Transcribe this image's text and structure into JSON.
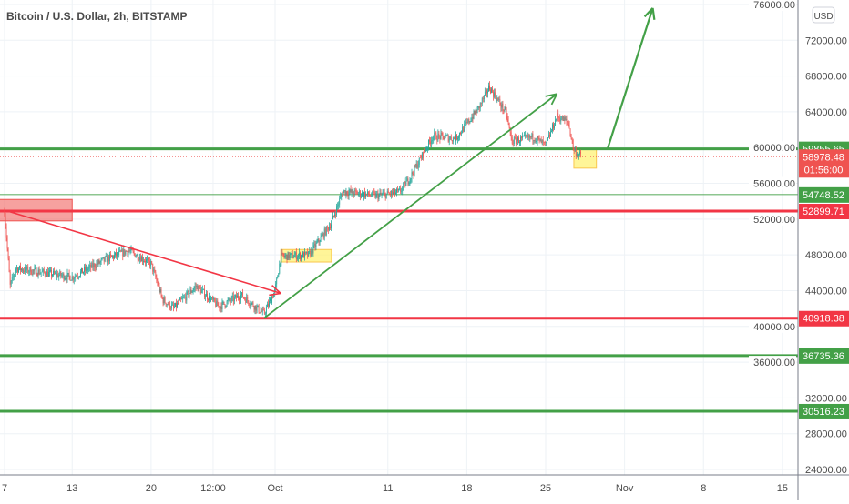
{
  "header": {
    "title": "Bitcoin / U.S. Dollar, 2h, BITSTAMP"
  },
  "price_axis": {
    "currency": "USD"
  },
  "colors": {
    "up": "#26a69a",
    "down": "#ef5350",
    "green_line": "#43a047",
    "red_line": "#f23645",
    "highlight": "#fff59d"
  },
  "chart_data": {
    "type": "candlestick",
    "title": "Bitcoin / U.S. Dollar, 2h, BITSTAMP",
    "ylim": [
      24000,
      76000
    ],
    "y_ticks": [
      "24000.00",
      "28000.00",
      "32000.00",
      "36000.00",
      "40000.00",
      "44000.00",
      "48000.00",
      "52000.00",
      "56000.00",
      "60000.00",
      "64000.00",
      "68000.00",
      "72000.00",
      "76000.00"
    ],
    "y_tick_values": [
      24000,
      28000,
      32000,
      36000,
      40000,
      44000,
      48000,
      52000,
      56000,
      60000,
      64000,
      68000,
      72000,
      76000
    ],
    "x_ticks": [
      {
        "label": "7",
        "date": "2021-09-07"
      },
      {
        "label": "13",
        "date": "2021-09-13"
      },
      {
        "label": "20",
        "date": "2021-09-20"
      },
      {
        "label": "12:00",
        "date": "2021-09-25T12:00"
      },
      {
        "label": "Oct",
        "date": "2021-10-01"
      },
      {
        "label": "11",
        "date": "2021-10-11"
      },
      {
        "label": "18",
        "date": "2021-10-18"
      },
      {
        "label": "25",
        "date": "2021-10-25"
      },
      {
        "label": "Nov",
        "date": "2021-11-01"
      },
      {
        "label": "8",
        "date": "2021-11-08"
      },
      {
        "label": "15",
        "date": "2021-11-15"
      }
    ],
    "price_path": [
      [
        "2021-09-07T00:00",
        52800
      ],
      [
        "2021-09-07T12:00",
        44500
      ],
      [
        "2021-09-08",
        46500
      ],
      [
        "2021-09-13",
        45500
      ],
      [
        "2021-09-16",
        47500
      ],
      [
        "2021-09-18",
        48500
      ],
      [
        "2021-09-20",
        47000
      ],
      [
        "2021-09-21",
        43000
      ],
      [
        "2021-09-22",
        42000
      ],
      [
        "2021-09-24",
        44500
      ],
      [
        "2021-09-26",
        42200
      ],
      [
        "2021-09-28",
        43500
      ],
      [
        "2021-09-30",
        41400
      ],
      [
        "2021-10-01",
        44000
      ],
      [
        "2021-10-01T12:00",
        47800
      ],
      [
        "2021-10-04",
        48000
      ],
      [
        "2021-10-06",
        51600
      ],
      [
        "2021-10-07",
        55100
      ],
      [
        "2021-10-10",
        54600
      ],
      [
        "2021-10-12",
        55000
      ],
      [
        "2021-10-13",
        56700
      ],
      [
        "2021-10-15",
        61300
      ],
      [
        "2021-10-17",
        61000
      ],
      [
        "2021-10-19",
        64300
      ],
      [
        "2021-10-20",
        66800
      ],
      [
        "2021-10-21T12:00",
        63800
      ],
      [
        "2021-10-22",
        60700
      ],
      [
        "2021-10-24",
        61200
      ],
      [
        "2021-10-25",
        60200
      ],
      [
        "2021-10-26",
        63500
      ],
      [
        "2021-10-27",
        62800
      ],
      [
        "2021-10-27T12:00",
        59700
      ],
      [
        "2021-10-28T04:00",
        58978.48
      ]
    ],
    "last_price": {
      "value": 58978.48,
      "label": "58978.48",
      "countdown": "01:56:00"
    },
    "horizontal_levels": [
      {
        "value": 59855.65,
        "label": "59855.65",
        "color": "green",
        "weight": "thick"
      },
      {
        "value": 54748.52,
        "label": "54748.52",
        "color": "green",
        "weight": "thin"
      },
      {
        "value": 52899.71,
        "label": "52899.71",
        "color": "red",
        "weight": "thick"
      },
      {
        "value": 40918.38,
        "label": "40918.38",
        "color": "red",
        "weight": "thick"
      },
      {
        "value": 36735.36,
        "label": "36735.36",
        "color": "green",
        "weight": "thick"
      },
      {
        "value": 30516.23,
        "label": "30516.23",
        "color": "green",
        "weight": "thick"
      }
    ],
    "drawings": {
      "red_zone": {
        "from": [
          "2021-09-06T12:00",
          54200
        ],
        "to": [
          "2021-09-13",
          51800
        ]
      },
      "red_arrow": {
        "from": [
          "2021-09-07",
          53000
        ],
        "to": [
          "2021-10-01T12:00",
          43700
        ]
      },
      "green_trend_arrow": {
        "from": [
          "2021-09-30",
          40900
        ],
        "to": [
          "2021-10-26",
          66000
        ]
      },
      "green_projection_arrow": {
        "from": [
          "2021-10-30T12:00",
          59900
        ],
        "to": [
          "2021-11-03T12:00",
          75600
        ]
      },
      "yellow_boxes": [
        {
          "from": [
            "2021-10-01T12:00",
            48600
          ],
          "to": [
            "2021-10-06",
            47200
          ]
        },
        {
          "from": [
            "2021-10-27T12:00",
            59900
          ],
          "to": [
            "2021-10-29T12:00",
            57700
          ]
        }
      ]
    }
  }
}
